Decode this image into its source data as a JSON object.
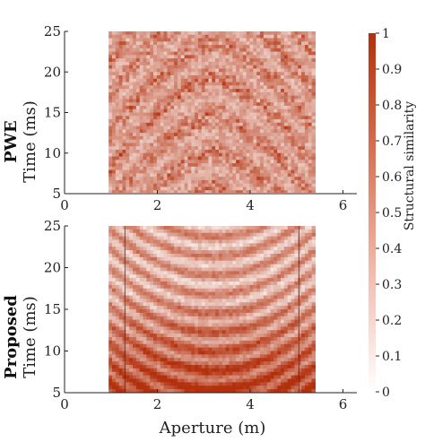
{
  "chart_data": [
    {
      "type": "heatmap",
      "panel_label": "PWE",
      "ylabel": "Time (ms)",
      "xlabel": "",
      "xlim": [
        0,
        6.3
      ],
      "ylim": [
        5,
        25
      ],
      "xticks": [
        "0",
        "2",
        "4",
        "6"
      ],
      "yticks": [
        "5",
        "10",
        "15",
        "20",
        "25"
      ],
      "image_extent_x": [
        0.95,
        5.4
      ],
      "image_extent_y": [
        5,
        25
      ],
      "pattern": "noisy, low-to-moderate similarity with faint diagonal bands"
    },
    {
      "type": "heatmap",
      "panel_label": "Proposed",
      "ylabel": "Time (ms)",
      "xlabel": "Aperture (m)",
      "xlim": [
        0,
        6.3
      ],
      "ylim": [
        5,
        25
      ],
      "xticks": [
        "0",
        "2",
        "4",
        "6"
      ],
      "yticks": [
        "5",
        "10",
        "15",
        "20",
        "25"
      ],
      "image_extent_x": [
        0.95,
        5.4
      ],
      "image_extent_y": [
        5,
        25
      ],
      "element_boundary_x": [
        1.3,
        5.05
      ],
      "pattern": "curved high-similarity bands, strongest at shallow times (5-12 ms)"
    }
  ],
  "colorbar": {
    "label": "Structural similarity",
    "range": [
      0,
      1
    ],
    "ticks": [
      "0",
      "0.1",
      "0.2",
      "0.3",
      "0.4",
      "0.5",
      "0.6",
      "0.7",
      "0.8",
      "0.9",
      "1"
    ],
    "color_low": "#ffffff",
    "color_high": "#b3300d"
  }
}
